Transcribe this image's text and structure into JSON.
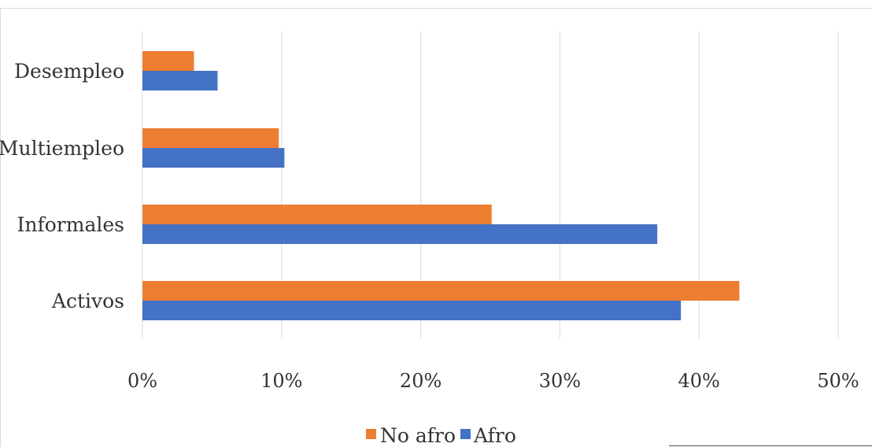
{
  "chart_data": {
    "type": "bar",
    "orientation": "horizontal",
    "categories": [
      "Desempleo",
      "Multiempleo",
      "Informales",
      "Activos"
    ],
    "series": [
      {
        "name": "No afro",
        "color": "#ED7D31",
        "values": [
          3.7,
          9.8,
          25.1,
          42.9
        ]
      },
      {
        "name": "Afro",
        "color": "#4472C4",
        "values": [
          5.4,
          10.2,
          37.0,
          38.7
        ]
      }
    ],
    "xlim": [
      0,
      50
    ],
    "xticks": [
      0,
      10,
      20,
      30,
      40,
      50
    ],
    "xtick_labels": [
      "0%",
      "10%",
      "20%",
      "30%",
      "40%",
      "50%"
    ],
    "grid": true,
    "legend_position": "bottom",
    "title": "",
    "xlabel": "",
    "ylabel": ""
  }
}
